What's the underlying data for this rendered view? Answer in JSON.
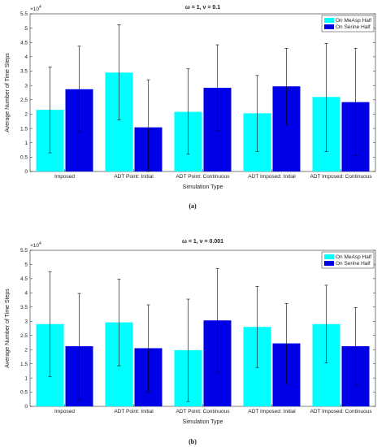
{
  "chart_data": [
    {
      "type": "bar",
      "title": "ω = 1, ν = 0.1",
      "xlabel": "Simulation Type",
      "ylabel": "Average Number of Time Steps",
      "exponent_label": "×10",
      "exponent_power": "4",
      "caption": "(a)",
      "categories": [
        "Imposed",
        "ADT Point: Initial",
        "ADT Point: Continuous",
        "ADT Imposed: Initial",
        "ADT Imposed: Continuous"
      ],
      "ylim": [
        0,
        5.5
      ],
      "yticks": [
        "0",
        "0.5",
        "1",
        "1.5",
        "2",
        "2.5",
        "3",
        "3.5",
        "4",
        "4.5",
        "5",
        "5.5"
      ],
      "legend_position": "top-right",
      "series": [
        {
          "name": "On MeAsp Half",
          "color": "#00ffff",
          "values": [
            2.15,
            3.45,
            2.08,
            2.03,
            2.6
          ],
          "err_low": [
            0.65,
            1.8,
            0.6,
            0.7,
            0.7
          ],
          "err_high": [
            3.65,
            5.12,
            3.58,
            3.35,
            4.47
          ]
        },
        {
          "name": "On Serine Half",
          "color": "#0000e6",
          "values": [
            2.87,
            1.54,
            2.92,
            2.97,
            2.42
          ],
          "err_low": [
            1.37,
            0.0,
            1.42,
            1.62,
            0.55
          ],
          "err_high": [
            4.37,
            3.2,
            4.42,
            4.3,
            4.3
          ]
        }
      ]
    },
    {
      "type": "bar",
      "title": "ω = 1, ν = 0.001",
      "xlabel": "Simulation Type",
      "ylabel": "Average Number of Time Steps",
      "exponent_label": "×10",
      "exponent_power": "4",
      "caption": "(b)",
      "categories": [
        "Imposed",
        "ADT Point: Initial",
        "ADT Point: Continuous",
        "ADT Imposed: Initial",
        "ADT Imposed: Continuous"
      ],
      "ylim": [
        0,
        5.5
      ],
      "yticks": [
        "0",
        "0.5",
        "1",
        "1.5",
        "2",
        "2.5",
        "3",
        "3.5",
        "4",
        "4.5",
        "5",
        "5.5"
      ],
      "legend_position": "top-right",
      "series": [
        {
          "name": "On MeAsp Half",
          "color": "#00ffff",
          "values": [
            2.9,
            2.96,
            1.98,
            2.8,
            2.9
          ],
          "err_low": [
            1.05,
            1.43,
            0.17,
            1.37,
            1.53
          ],
          "err_high": [
            4.75,
            4.48,
            3.78,
            4.23,
            4.27
          ]
        },
        {
          "name": "On Serine Half",
          "color": "#0000e6",
          "values": [
            2.12,
            2.05,
            3.03,
            2.22,
            2.12
          ],
          "err_low": [
            0.25,
            0.5,
            1.22,
            0.8,
            0.75
          ],
          "err_high": [
            3.98,
            3.58,
            4.85,
            3.63,
            3.48
          ]
        }
      ]
    }
  ]
}
